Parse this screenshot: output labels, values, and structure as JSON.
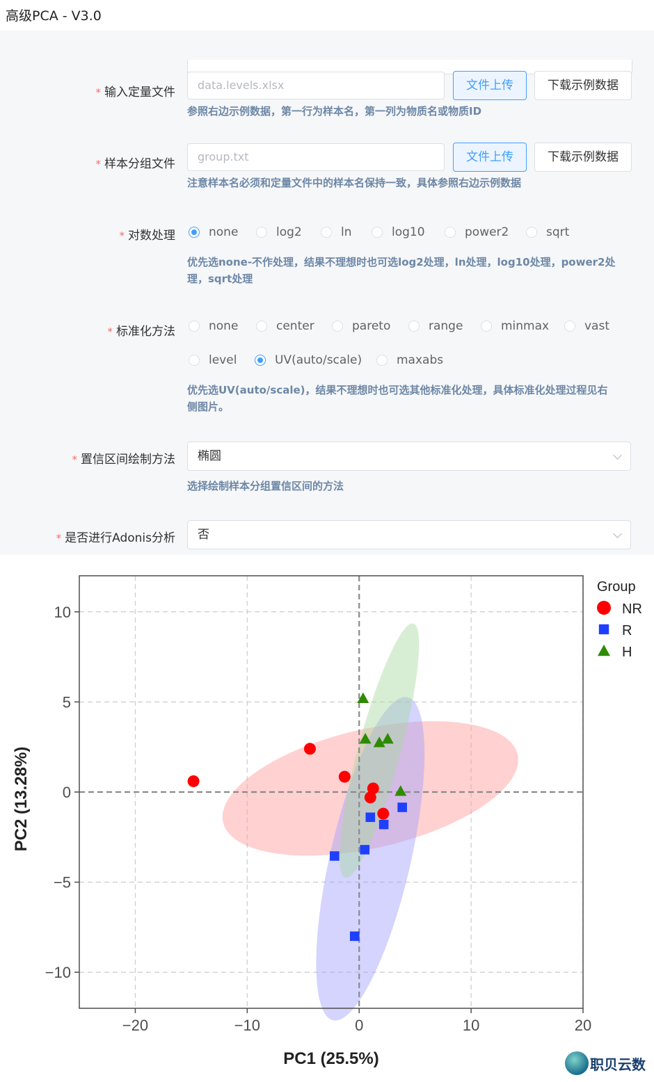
{
  "title": "高级PCA - V3.0",
  "form": {
    "quant_file": {
      "label": "输入定量文件",
      "placeholder": "data.levels.xlsx",
      "upload_label": "文件上传",
      "download_label": "下载示例数据",
      "hint": "参照右边示例数据，第一行为样本名，第一列为物质名或物质ID"
    },
    "group_file": {
      "label": "样本分组文件",
      "placeholder": "group.txt",
      "upload_label": "文件上传",
      "download_label": "下载示例数据",
      "hint": "注意样本名必须和定量文件中的样本名保持一致，具体参照右边示例数据"
    },
    "log": {
      "label": "对数处理",
      "options": [
        "none",
        "log2",
        "ln",
        "log10",
        "power2",
        "sqrt"
      ],
      "selected": "none",
      "hint_line1": "优先选none-不作处理，结果不理想时也可选log2处理，ln处理，log10处理，power2处",
      "hint_line2": "理，sqrt处理"
    },
    "scale": {
      "label": "标准化方法",
      "options": [
        "none",
        "center",
        "pareto",
        "range",
        "minmax",
        "vast",
        "level",
        "UV(auto/scale)",
        "maxabs"
      ],
      "selected": "UV(auto/scale)",
      "hint_line1": "优先选UV(auto/scale)，结果不理想时也可选其他标准化处理，具体标准化处理过程见右",
      "hint_line2": "侧图片。"
    },
    "ci_method": {
      "label": "置信区间绘制方法",
      "value": "椭圆",
      "hint": "选择绘制样本分组置信区间的方法"
    },
    "adonis": {
      "label": "是否进行Adonis分析",
      "value": "否"
    }
  },
  "chart_data": {
    "type": "scatter",
    "xlabel": "PC1 (25.5%)",
    "ylabel": "PC2 (13.28%)",
    "xlim": [
      -25,
      20
    ],
    "ylim": [
      -12,
      12
    ],
    "xticks": [
      -20,
      -10,
      0,
      10,
      20
    ],
    "yticks": [
      -10,
      -5,
      0,
      5,
      10
    ],
    "grid": true,
    "legend_title": "Group",
    "legend_position": "right-top",
    "series": [
      {
        "name": "NR",
        "color": "#ff0000",
        "marker": "circle",
        "points": [
          [
            -14.8,
            0.6
          ],
          [
            -4.4,
            2.4
          ],
          [
            -1.3,
            0.85
          ],
          [
            1.25,
            0.2
          ],
          [
            1.0,
            -0.3
          ],
          [
            2.15,
            -1.2
          ]
        ],
        "ellipse": {
          "cx": 1.0,
          "cy": 0.2,
          "rx": 13.5,
          "ry": 3.3,
          "angle_deg": -13,
          "fill": "#ff9a9a"
        }
      },
      {
        "name": "R",
        "color": "#1f3fff",
        "marker": "square",
        "points": [
          [
            -2.2,
            -3.55
          ],
          [
            0.5,
            -3.2
          ],
          [
            1.0,
            -1.4
          ],
          [
            2.2,
            -1.8
          ],
          [
            3.85,
            -0.85
          ],
          [
            -0.4,
            -8.0
          ]
        ],
        "ellipse": {
          "cx": 1.0,
          "cy": -3.7,
          "rx": 3.6,
          "ry": 9.2,
          "angle_deg": 13,
          "fill": "#a0a0ff"
        }
      },
      {
        "name": "H",
        "color": "#2e8b00",
        "marker": "triangle",
        "points": [
          [
            0.35,
            5.2
          ],
          [
            0.55,
            2.95
          ],
          [
            1.8,
            2.75
          ],
          [
            2.55,
            2.95
          ],
          [
            3.7,
            0.05
          ]
        ],
        "ellipse": {
          "cx": 1.8,
          "cy": 2.3,
          "rx": 1.9,
          "ry": 7.3,
          "angle_deg": 15,
          "fill": "#a9d9a0"
        }
      }
    ]
  },
  "watermark": {
    "icon": "globe-logo-icon",
    "text": "职贝云数"
  }
}
